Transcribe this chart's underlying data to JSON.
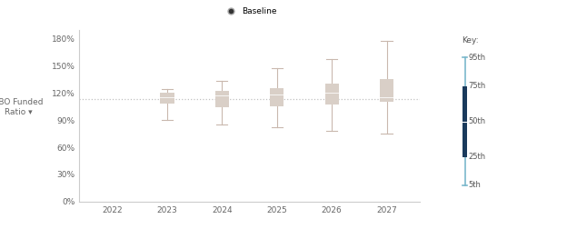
{
  "years": [
    2022,
    2023,
    2024,
    2025,
    2026,
    2027
  ],
  "percentiles": {
    "p5": [
      null,
      90,
      85,
      82,
      78,
      75
    ],
    "p25": [
      null,
      108,
      104,
      105,
      107,
      110
    ],
    "p50": [
      null,
      115,
      117,
      118,
      120,
      115
    ],
    "p75": [
      null,
      120,
      122,
      125,
      130,
      135
    ],
    "p95": [
      null,
      124,
      133,
      148,
      158,
      178
    ]
  },
  "baseline": 113,
  "box_color": "#d9cfc7",
  "whisker_color": "#c9b8ae",
  "baseline_color": "#999999",
  "key_box_color": "#1a3a5c",
  "key_whisker_color": "#7ab8cc",
  "ylabel": "PBO Funded\nRatio ▾",
  "yticks": [
    0,
    30,
    60,
    90,
    120,
    150,
    180
  ],
  "ytick_labels": [
    "0%",
    "30%",
    "60%",
    "90%",
    "120%",
    "150%",
    "180%"
  ],
  "xlim": [
    2021.4,
    2027.6
  ],
  "ylim": [
    0,
    190
  ],
  "bar_width": 0.25,
  "legend_label": "Baseline",
  "key_labels": [
    "95th",
    "75th",
    "50th",
    "25th",
    "5th"
  ]
}
